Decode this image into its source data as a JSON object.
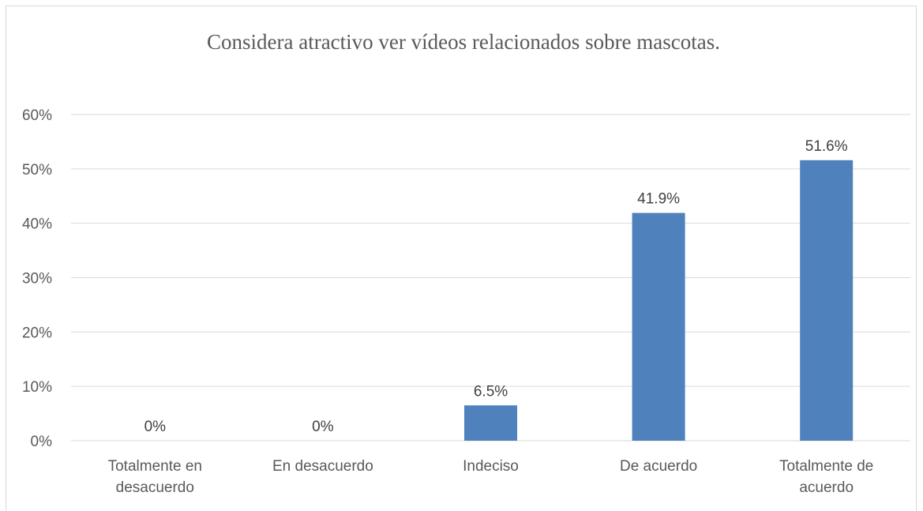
{
  "chart_data": {
    "type": "bar",
    "title": "Considera atractivo ver vídeos relacionados sobre mascotas.",
    "xlabel": "",
    "ylabel": "",
    "categories": [
      [
        "Totalmente en",
        "desacuerdo"
      ],
      [
        "En desacuerdo"
      ],
      [
        "Indeciso"
      ],
      [
        "De acuerdo"
      ],
      [
        "Totalmente de",
        "acuerdo"
      ]
    ],
    "values": [
      0,
      0,
      6.5,
      41.9,
      51.6
    ],
    "data_labels": [
      "0%",
      "0%",
      "6.5%",
      "41.9%",
      "51.6%"
    ],
    "ylim": [
      0,
      60
    ],
    "yticks": [
      0,
      10,
      20,
      30,
      40,
      50,
      60
    ],
    "ytick_labels": [
      "0%",
      "10%",
      "20%",
      "30%",
      "40%",
      "50%",
      "60%"
    ],
    "grid": true,
    "legend": "none",
    "colors": {
      "bar": "#4f81bd",
      "grid": "#d9d9d9",
      "text": "#595959"
    }
  }
}
